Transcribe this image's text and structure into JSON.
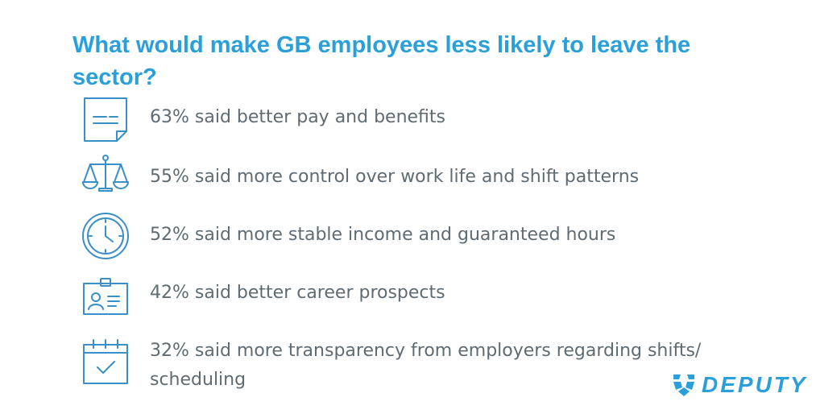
{
  "title": "What would make GB employees less likely to leave the sector?",
  "items": [
    {
      "icon": "document-icon",
      "text": "63% said better pay and benefits"
    },
    {
      "icon": "scales-icon",
      "text": "55% said more control over work life and shift patterns"
    },
    {
      "icon": "clock-icon",
      "text": "52% said more stable income and guaranteed hours"
    },
    {
      "icon": "id-badge-icon",
      "text": "42% said better career prospects"
    },
    {
      "icon": "calendar-check-icon",
      "text": "32% said more transparency from employers regarding shifts/ scheduling"
    }
  ],
  "logo": {
    "text": "DEPUTY"
  },
  "colors": {
    "accent": "#2b9fd9",
    "body_text": "#5f6b73",
    "icon_stroke": "#3a8fc7"
  }
}
